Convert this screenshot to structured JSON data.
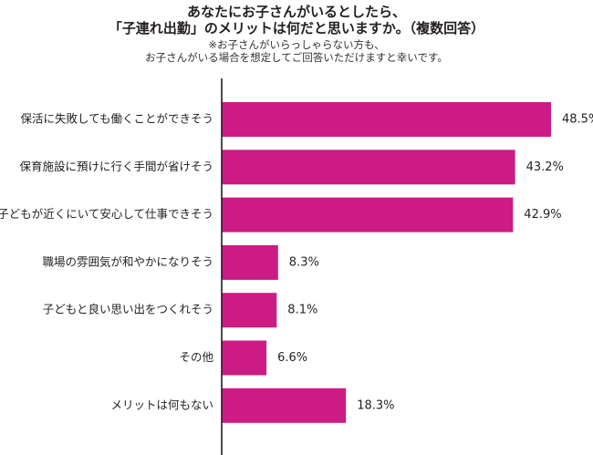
{
  "header": {
    "title_line1": "あなたにお子さんがいるとしたら、",
    "title_line2": "「子連れ出勤」のメリットは何だと思いますか。（複数回答）",
    "note_line1": "※お子さんがいらっしゃらない方も、",
    "note_line2": "お子さんがいる場合を想定してご回答いただけますと幸いです。"
  },
  "colors": {
    "bar": "#cc1b85",
    "axis": "#231f20",
    "text": "#231f20"
  },
  "chart_data": {
    "type": "bar",
    "orientation": "horizontal",
    "title": "あなたにお子さんがいるとしたら、「子連れ出勤」のメリットは何だと思いますか。（複数回答）",
    "categories": [
      "保活に失敗しても働くことができそう",
      "保育施設に預けに行く手間が省けそう",
      "子どもが近くにいて安心して仕事できそう",
      "職場の雰囲気が和やかになりそう",
      "子どもと良い思い出をつくれそう",
      "その他",
      "メリットは何もない"
    ],
    "values": [
      48.5,
      43.2,
      42.9,
      8.3,
      8.1,
      6.6,
      18.3
    ],
    "value_labels": [
      "48.5%",
      "43.2%",
      "42.9%",
      "8.3%",
      "8.1%",
      "6.6%",
      "18.3%"
    ],
    "unit": "%",
    "xlim": [
      0,
      50
    ],
    "grid": false,
    "legend": "none"
  }
}
